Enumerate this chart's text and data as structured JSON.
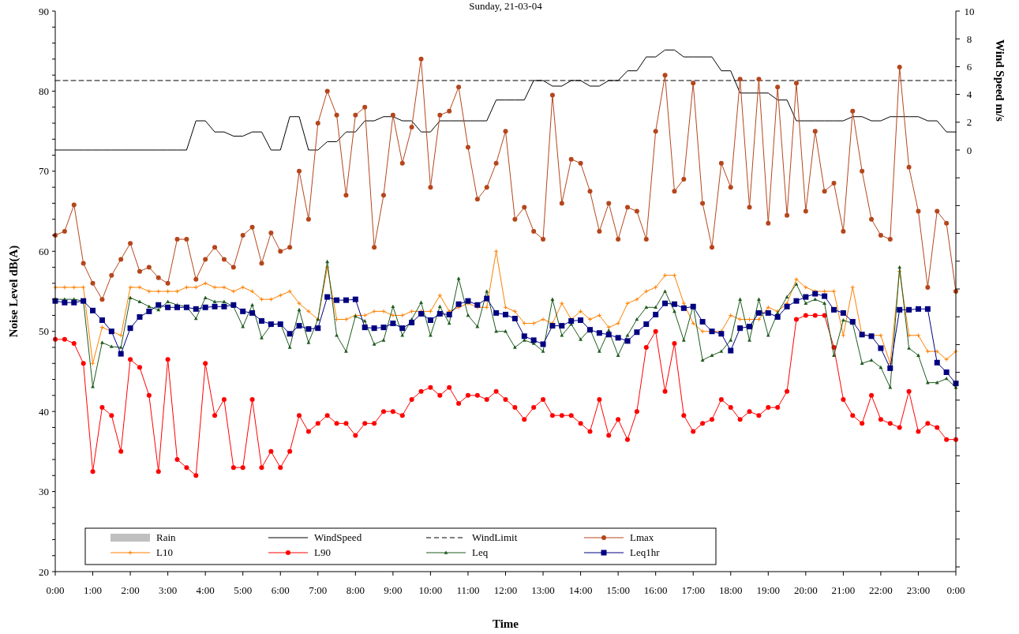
{
  "chart_data": {
    "type": "line",
    "title": "Sunday, 21-03-04",
    "xlabel": "Time",
    "ylabel": "Noise Level dB(A)",
    "y2label": "Wind Speed m/s",
    "x": [
      0,
      0.25,
      0.5,
      0.75,
      1,
      1.25,
      1.5,
      1.75,
      2,
      2.25,
      2.5,
      2.75,
      3,
      3.25,
      3.5,
      3.75,
      4,
      4.25,
      4.5,
      4.75,
      5,
      5.25,
      5.5,
      5.75,
      6,
      6.25,
      6.5,
      6.75,
      7,
      7.25,
      7.5,
      7.75,
      8,
      8.25,
      8.5,
      8.75,
      9,
      9.25,
      9.5,
      9.75,
      10,
      10.25,
      10.5,
      10.75,
      11,
      11.25,
      11.5,
      11.75,
      12,
      12.25,
      12.5,
      12.75,
      13,
      13.25,
      13.5,
      13.75,
      14,
      14.25,
      14.5,
      14.75,
      15,
      15.25,
      15.5,
      15.75,
      16,
      16.25,
      16.5,
      16.75,
      17,
      17.25,
      17.5,
      17.75,
      18,
      18.25,
      18.5,
      18.75,
      19,
      19.25,
      19.5,
      19.75,
      20,
      20.25,
      20.5,
      20.75,
      21,
      21.25,
      21.5,
      21.75,
      22,
      22.25,
      22.5,
      22.75,
      23,
      23.25,
      23.5,
      23.75,
      24
    ],
    "xlim": [
      0,
      24
    ],
    "xticks": [
      {
        "value": 0,
        "label": "0:00"
      },
      {
        "value": 1,
        "label": "1:00"
      },
      {
        "value": 2,
        "label": "2:00"
      },
      {
        "value": 3,
        "label": "3:00"
      },
      {
        "value": 4,
        "label": "4:00"
      },
      {
        "value": 5,
        "label": "5:00"
      },
      {
        "value": 6,
        "label": "6:00"
      },
      {
        "value": 7,
        "label": "7:00"
      },
      {
        "value": 8,
        "label": "8:00"
      },
      {
        "value": 9,
        "label": "9:00"
      },
      {
        "value": 10,
        "label": "10:00"
      },
      {
        "value": 11,
        "label": "11:00"
      },
      {
        "value": 12,
        "label": "12:00"
      },
      {
        "value": 13,
        "label": "13:00"
      },
      {
        "value": 14,
        "label": "14:00"
      },
      {
        "value": 15,
        "label": "15:00"
      },
      {
        "value": 16,
        "label": "16:00"
      },
      {
        "value": 17,
        "label": "17:00"
      },
      {
        "value": 18,
        "label": "18:00"
      },
      {
        "value": 19,
        "label": "19:00"
      },
      {
        "value": 20,
        "label": "20:00"
      },
      {
        "value": 21,
        "label": "21:00"
      },
      {
        "value": 22,
        "label": "22:00"
      },
      {
        "value": 23,
        "label": "23:00"
      },
      {
        "value": 24,
        "label": "0:00"
      }
    ],
    "ylim": [
      20,
      90
    ],
    "yticks": [
      20,
      {
        "value": 22,
        "label": null
      },
      {
        "value": 24,
        "label": null
      },
      {
        "value": 26,
        "label": null
      },
      {
        "value": 28,
        "label": null
      },
      30,
      {
        "value": 32,
        "label": null
      },
      {
        "value": 34,
        "label": null
      },
      {
        "value": 36,
        "label": null
      },
      {
        "value": 38,
        "label": null
      },
      40,
      {
        "value": 42,
        "label": null
      },
      {
        "value": 44,
        "label": null
      },
      {
        "value": 46,
        "label": null
      },
      {
        "value": 48,
        "label": null
      },
      50,
      {
        "value": 52,
        "label": null
      },
      {
        "value": 54,
        "label": null
      },
      {
        "value": 56,
        "label": null
      },
      {
        "value": 58,
        "label": null
      },
      60,
      {
        "value": 62,
        "label": null
      },
      {
        "value": 64,
        "label": null
      },
      {
        "value": 66,
        "label": null
      },
      {
        "value": 68,
        "label": null
      },
      70,
      {
        "value": 72,
        "label": null
      },
      {
        "value": 74,
        "label": null
      },
      {
        "value": 76,
        "label": null
      },
      {
        "value": 78,
        "label": null
      },
      80,
      {
        "value": 82,
        "label": null
      },
      {
        "value": 84,
        "label": null
      },
      {
        "value": 86,
        "label": null
      },
      {
        "value": 88,
        "label": null
      },
      90
    ],
    "y2lim": [
      -30.34,
      10
    ],
    "y2ticks": [
      {
        "value": -30,
        "label": null
      },
      {
        "value": -28,
        "label": null
      },
      {
        "value": -26,
        "label": null
      },
      {
        "value": -24,
        "label": null
      },
      {
        "value": -22,
        "label": null
      },
      {
        "value": -20,
        "label": null
      },
      {
        "value": -18,
        "label": null
      },
      {
        "value": -16,
        "label": null
      },
      {
        "value": -14,
        "label": null
      },
      {
        "value": -12,
        "label": null
      },
      {
        "value": -10,
        "label": null
      },
      {
        "value": -8,
        "label": null
      },
      {
        "value": -6,
        "label": null
      },
      {
        "value": -4,
        "label": null
      },
      {
        "value": -2,
        "label": null
      },
      0,
      2,
      4,
      6,
      8,
      10
    ],
    "legend": "bottom left",
    "series": [
      {
        "name": "Rain",
        "type": "bar",
        "axis": "y2",
        "color": "#c0c0c0",
        "values": [
          null,
          null,
          null,
          null,
          null,
          null,
          null,
          null,
          null,
          null,
          null,
          null,
          null,
          null,
          null,
          null,
          null,
          null,
          null,
          null,
          null,
          null,
          null,
          null,
          null,
          null,
          null,
          null,
          null,
          null,
          null,
          null,
          null,
          null,
          null,
          null,
          null,
          null,
          null,
          null,
          null,
          null,
          null,
          null,
          null,
          null,
          null,
          null,
          null,
          null,
          null,
          null,
          null,
          null,
          null,
          null,
          null,
          null,
          null,
          null,
          null,
          null,
          null,
          null,
          null,
          null,
          null,
          null,
          null,
          null,
          null,
          null,
          null,
          null,
          null,
          null,
          null,
          null,
          null,
          null,
          null,
          null,
          null,
          null,
          null,
          null,
          null,
          null,
          null,
          null,
          null,
          null,
          null,
          null,
          null,
          null,
          null
        ]
      },
      {
        "name": "WindSpeed",
        "axis": "y2",
        "color": "#000000",
        "marker": "none",
        "line_style": "solid",
        "values": [
          0,
          0,
          0,
          0,
          0,
          0,
          0,
          0,
          0,
          0,
          0,
          0,
          0,
          0,
          0,
          2.1,
          2.1,
          1.3,
          1.3,
          1.0,
          1.0,
          1.3,
          1.3,
          0,
          0,
          2.4,
          2.4,
          0,
          0,
          0.6,
          0.6,
          1.3,
          1.3,
          2.1,
          2.1,
          2.4,
          2.4,
          2.1,
          2.1,
          1.3,
          1.3,
          2.1,
          2.1,
          2.1,
          2.1,
          2.1,
          2.1,
          3.6,
          3.6,
          3.6,
          3.6,
          5.0,
          5.0,
          4.6,
          4.6,
          5.0,
          5.0,
          4.6,
          4.6,
          5.0,
          5.0,
          5.7,
          5.7,
          6.7,
          6.7,
          7.2,
          7.2,
          6.7,
          6.7,
          6.7,
          6.7,
          5.7,
          5.7,
          4.1,
          4.1,
          4.1,
          4.1,
          3.6,
          3.6,
          2.1,
          2.1,
          2.1,
          2.1,
          2.1,
          2.1,
          2.4,
          2.4,
          2.1,
          2.1,
          2.4,
          2.4,
          2.4,
          2.4,
          2.1,
          2.1,
          1.3,
          1.3
        ]
      },
      {
        "name": "WindLimit",
        "axis": "y2",
        "color": "#000000",
        "marker": "none",
        "line_style": "dashed",
        "x": [
          0,
          24
        ],
        "values": [
          5,
          5
        ]
      },
      {
        "name": "Lmax",
        "color": "#b5461c",
        "marker": "circle",
        "line_style": "solid",
        "values": [
          62,
          62.5,
          65.8,
          58.5,
          56,
          54,
          57,
          59,
          61,
          57.5,
          58,
          56.7,
          56,
          61.5,
          61.5,
          56.5,
          59,
          60.5,
          59,
          58,
          62,
          63,
          58.5,
          62.3,
          60,
          60.5,
          70,
          64,
          76,
          80,
          77,
          67,
          77,
          78,
          60.5,
          67,
          77,
          71,
          75.5,
          84,
          68,
          77,
          77.5,
          80.5,
          73,
          66.5,
          68,
          71,
          75,
          64,
          65.5,
          62.5,
          61.5,
          79.5,
          66,
          71.5,
          71,
          67.5,
          62.5,
          66,
          61.5,
          65.5,
          65,
          61.5,
          75,
          82,
          67.5,
          69,
          81,
          66,
          60.5,
          71,
          68,
          81.5,
          65.5,
          81.5,
          63.5,
          80.5,
          64.5,
          81,
          65,
          75,
          67.5,
          68.5,
          62.5,
          77.5,
          70,
          64,
          62,
          61.5,
          83,
          70.5,
          65,
          55.5,
          65,
          63.5,
          55
        ]
      },
      {
        "name": "L10",
        "color": "#ff8000",
        "marker": "cross",
        "line_style": "solid",
        "values": [
          55.5,
          55.5,
          55.5,
          55.5,
          46,
          50.5,
          50,
          49.5,
          55.5,
          55.5,
          55,
          55,
          55,
          55,
          55.5,
          55.5,
          56,
          55.5,
          55.5,
          55,
          55.5,
          55,
          54,
          54,
          54.5,
          55,
          53.5,
          52.5,
          51.5,
          58,
          51.5,
          51.5,
          52,
          52,
          52.5,
          52.5,
          52,
          52,
          52.5,
          52.5,
          52.5,
          54.5,
          52.5,
          53,
          53.5,
          53,
          53,
          60,
          53,
          52.5,
          51,
          51,
          51.5,
          51,
          53.5,
          51.5,
          52.5,
          51.5,
          52,
          50.5,
          51,
          53.5,
          54,
          55,
          55.5,
          57,
          57,
          53.5,
          51,
          50,
          50,
          50,
          52,
          51.5,
          51.5,
          51.5,
          53,
          52.5,
          53.5,
          56.5,
          55.5,
          55,
          55,
          55,
          49.5,
          55.5,
          49.5,
          49.5,
          49.5,
          46,
          57.5,
          49.5,
          49.5,
          47.5,
          47.5,
          46.5,
          47.5
        ]
      },
      {
        "name": "L90",
        "color": "#ff0000",
        "marker": "circle",
        "line_style": "solid",
        "values": [
          49,
          49,
          48.5,
          46,
          32.5,
          40.5,
          39.5,
          35,
          46.5,
          45.5,
          42,
          32.5,
          46.5,
          34,
          33,
          32,
          46,
          39.5,
          41.5,
          33,
          33,
          41.5,
          33,
          35,
          33,
          35,
          39.5,
          37.5,
          38.5,
          39.5,
          38.5,
          38.5,
          37,
          38.5,
          38.5,
          40,
          40,
          39.5,
          41.5,
          42.5,
          43,
          42,
          43,
          41,
          42,
          42,
          41.5,
          42.5,
          41.5,
          40.5,
          39,
          40.5,
          41.5,
          39.5,
          39.5,
          39.5,
          38.5,
          37.5,
          41.5,
          37,
          39,
          36.5,
          40,
          48,
          50,
          42.5,
          48.5,
          39.5,
          37.5,
          38.5,
          39,
          41.5,
          40.5,
          39,
          40,
          39.5,
          40.5,
          40.5,
          42.5,
          51.5,
          52,
          52,
          52,
          48,
          41.5,
          39.5,
          38.5,
          42,
          39,
          38.5,
          38,
          42.5,
          37.5,
          38.5,
          38,
          36.5,
          36.5
        ]
      },
      {
        "name": "Leq",
        "color": "#1e5b1e",
        "marker": "triangle",
        "line_style": "solid",
        "values": [
          54,
          54,
          54,
          53.8,
          43.1,
          48.6,
          48.1,
          48,
          54.2,
          53.7,
          53.1,
          52.7,
          53.7,
          53.3,
          53.1,
          51.6,
          54.2,
          53.7,
          53.7,
          53.1,
          50.6,
          53.3,
          49.2,
          50.8,
          51,
          48,
          52.7,
          48.6,
          51.5,
          58.7,
          49.5,
          47.5,
          51.9,
          51.3,
          48.4,
          48.9,
          53.1,
          49.5,
          51.5,
          53.6,
          49.5,
          53.1,
          51,
          56.6,
          52,
          50.6,
          55,
          50,
          50,
          48,
          48.9,
          48.5,
          47.5,
          54,
          49.5,
          50.9,
          49,
          50.3,
          47.5,
          50.1,
          47,
          49.5,
          51.5,
          53,
          53,
          55,
          52.5,
          48.9,
          53.2,
          46.4,
          47,
          47.5,
          48.9,
          54,
          48.9,
          54,
          49.5,
          52.3,
          54.3,
          55.9,
          53.5,
          54,
          53.5,
          47,
          51.4,
          51,
          46,
          46.4,
          45.5,
          43,
          58,
          47.9,
          47,
          43.6,
          43.6,
          44.1,
          43
        ]
      },
      {
        "name": "Leq1hr",
        "color": "#000080",
        "marker": "square",
        "line_style": "solid",
        "values": [
          53.8,
          53.6,
          53.6,
          53.8,
          52.6,
          51.4,
          50,
          47.2,
          50.4,
          51.8,
          52.5,
          53.3,
          53,
          53,
          53,
          52.8,
          53,
          53.1,
          53.1,
          53.3,
          52.5,
          52.3,
          51.3,
          50.9,
          50.9,
          49.7,
          50.7,
          50.3,
          50.4,
          54.3,
          53.9,
          53.9,
          54,
          50.5,
          50.4,
          50.5,
          51,
          50.4,
          51.1,
          52.2,
          51.4,
          52.2,
          52.1,
          53.4,
          53.8,
          53.3,
          54.1,
          52.3,
          52.1,
          51.6,
          49.4,
          48.9,
          48.4,
          50.7,
          50.7,
          51.3,
          51.4,
          50.2,
          49.8,
          49.6,
          49.2,
          48.8,
          49.9,
          50.9,
          52.1,
          53.5,
          53.4,
          52.9,
          53.1,
          51.2,
          50,
          49.7,
          47.6,
          50.4,
          50.6,
          52.3,
          52.3,
          51.8,
          53.1,
          53.8,
          54.3,
          54.7,
          54.4,
          52.7,
          52.3,
          51.2,
          49.6,
          49.4,
          47.9,
          45.4,
          52.7,
          52.7,
          52.8,
          52.8,
          46.1,
          44.9,
          43.5
        ]
      }
    ]
  }
}
